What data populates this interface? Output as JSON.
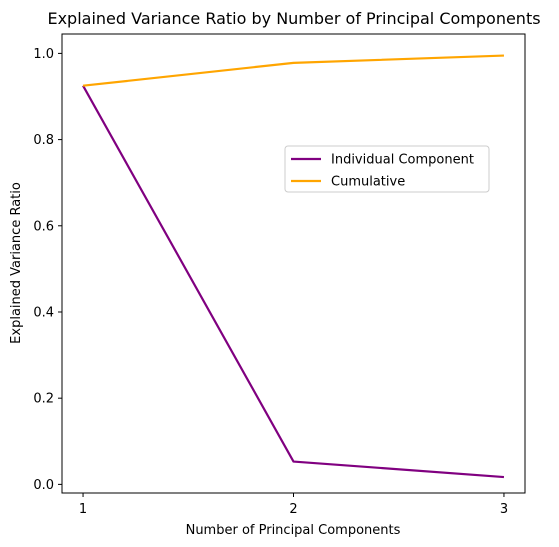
{
  "chart_data": {
    "type": "line",
    "title": "Explained Variance Ratio by Number of Principal Components",
    "xlabel": "Number of Principal Components",
    "ylabel": "Explained Variance Ratio",
    "x": [
      1,
      2,
      3
    ],
    "x_ticks": [
      "1",
      "2",
      "3"
    ],
    "y_ticks": [
      "0.0",
      "0.2",
      "0.4",
      "0.6",
      "0.8",
      "1.0"
    ],
    "ylim": [
      -0.02,
      1.045
    ],
    "xlim": [
      0.9,
      3.1
    ],
    "grid": false,
    "legend_placement": "center-right",
    "series": [
      {
        "name": "Individual Component",
        "color": "#800080",
        "values": [
          0.925,
          0.053,
          0.017
        ]
      },
      {
        "name": "Cumulative",
        "color": "#FFA500",
        "values": [
          0.925,
          0.978,
          0.995
        ]
      }
    ]
  }
}
